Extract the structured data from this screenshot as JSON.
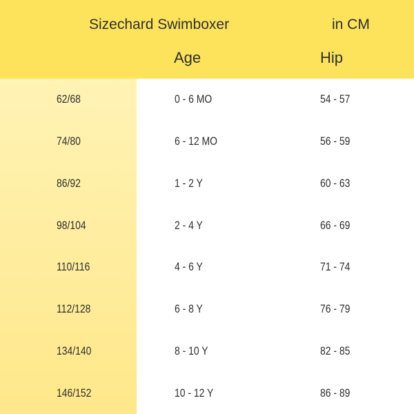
{
  "header": {
    "title": "Sizechard Swimboxer",
    "unit": "in CM",
    "columns": [
      "",
      "Age",
      "Hip"
    ]
  },
  "colors": {
    "header": "#fde35c",
    "size_column": "#fff3b5"
  },
  "rows": [
    {
      "size": "62/68",
      "age": "0 - 6 MO",
      "hip": "54 - 57"
    },
    {
      "size": "74/80",
      "age": "6 - 12 MO",
      "hip": "56 - 59"
    },
    {
      "size": "86/92",
      "age": "1 - 2  Y",
      "hip": "60 - 63"
    },
    {
      "size": "98/104",
      "age": "2 - 4  Y",
      "hip": "66 - 69"
    },
    {
      "size": "110/116",
      "age": "4 - 6  Y",
      "hip": "71 - 74"
    },
    {
      "size": "112/128",
      "age": "6 - 8  Y",
      "hip": "76 - 79"
    },
    {
      "size": "134/140",
      "age": "8 - 10  Y",
      "hip": "82 - 85"
    },
    {
      "size": "146/152",
      "age": "10 - 12  Y",
      "hip": "86 - 89"
    }
  ]
}
